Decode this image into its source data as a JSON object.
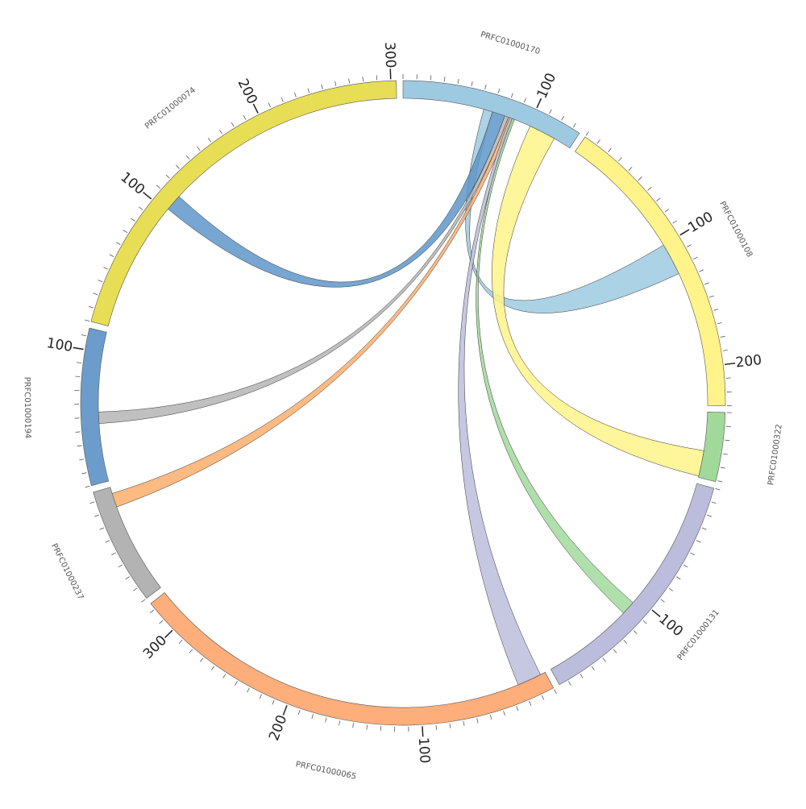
{
  "chart_data": {
    "type": "chord",
    "minor_tick_step": 10,
    "segments": [
      {
        "name": "PRFC01000170",
        "length": 136,
        "color": "#9ecae1",
        "ticks": [
          100
        ]
      },
      {
        "name": "PRFC01000108",
        "length": 230,
        "color": "#fff38a",
        "ticks": [
          100,
          200
        ]
      },
      {
        "name": "PRFC01000322",
        "length": 51,
        "color": "#a1d99b",
        "ticks": []
      },
      {
        "name": "PRFC01000131",
        "length": 187,
        "color": "#bcbddc",
        "ticks": [
          100
        ]
      },
      {
        "name": "PRFC01000065",
        "length": 325,
        "color": "#fdae7b",
        "ticks": [
          100,
          200,
          300
        ]
      },
      {
        "name": "PRFC01000237",
        "length": 87,
        "color": "#b3b3b3",
        "ticks": []
      },
      {
        "name": "PRFC01000194",
        "length": 116,
        "color": "#6b9ccb",
        "ticks": [
          100
        ]
      },
      {
        "name": "PRFC01000074",
        "length": 304,
        "color": "#e8de55",
        "ticks": [
          100,
          200,
          300
        ]
      }
    ],
    "links": [
      {
        "source": "PRFC01000170",
        "source_range": [
          63,
          70
        ],
        "target": "PRFC01000108",
        "target_range": [
          100,
          125
        ],
        "color": "#9ecae1"
      },
      {
        "source": "PRFC01000170",
        "source_range": [
          70,
          80
        ],
        "target": "PRFC01000074",
        "target_range": [
          102,
          115
        ],
        "color": "#5e97c9"
      },
      {
        "source": "PRFC01000170",
        "source_range": [
          80,
          83
        ],
        "target": "PRFC01000194",
        "target_range": [
          45,
          54
        ],
        "color": "#b5b5b5"
      },
      {
        "source": "PRFC01000170",
        "source_range": [
          83,
          86
        ],
        "target": "PRFC01000237",
        "target_range": [
          71,
          82
        ],
        "color": "#fdae6b"
      },
      {
        "source": "PRFC01000170",
        "source_range": [
          84,
          87
        ],
        "target": "PRFC01000065",
        "target_range": [
          4,
          23
        ],
        "color": "#bcbddc"
      },
      {
        "source": "PRFC01000170",
        "source_range": [
          86,
          88
        ],
        "target": "PRFC01000131",
        "target_range": [
          105,
          116
        ],
        "color": "#a1d99b"
      },
      {
        "source": "PRFC01000170",
        "source_range": [
          101,
          122
        ],
        "target": "PRFC01000322",
        "target_range": [
          30,
          50
        ],
        "color": "#fff38a"
      }
    ]
  }
}
